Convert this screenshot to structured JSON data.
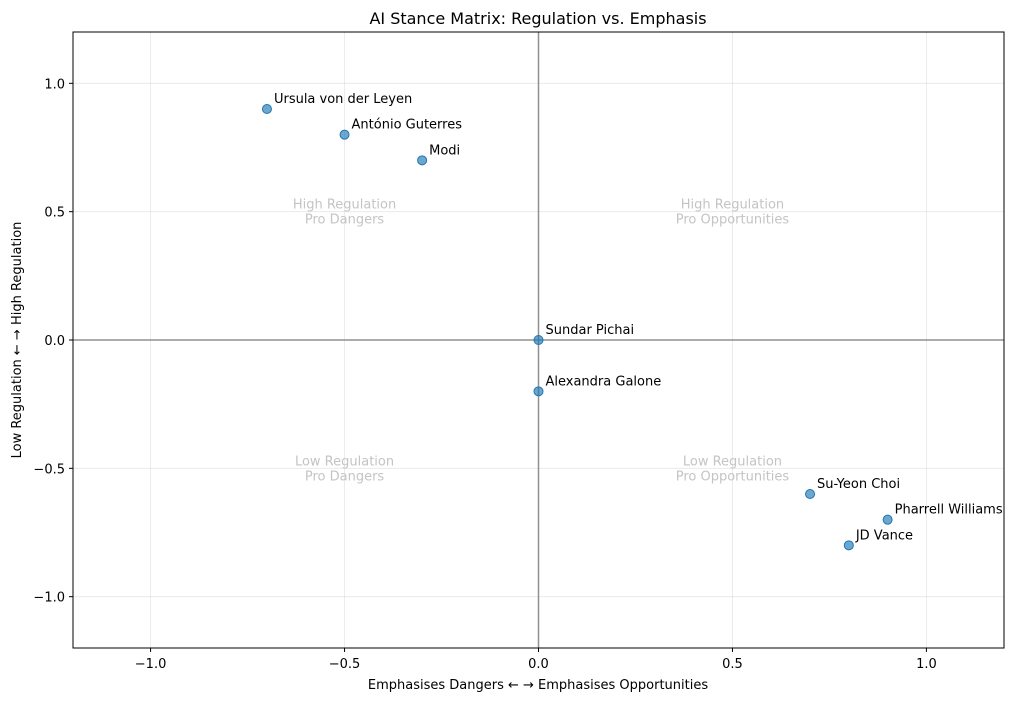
{
  "chart_data": {
    "type": "scatter",
    "title": "AI Stance Matrix: Regulation vs. Emphasis",
    "xlabel": "Emphasises Dangers ← → Emphasises Opportunities",
    "ylabel": "Low Regulation ← → High Regulation",
    "xlim": [
      -1.2,
      1.2
    ],
    "ylim": [
      -1.2,
      1.2
    ],
    "grid": true,
    "xticks": [
      -1.0,
      -0.5,
      0.0,
      0.5,
      1.0
    ],
    "yticks": [
      -1.0,
      -0.5,
      0.0,
      0.5,
      1.0
    ],
    "xtick_labels": [
      "−1.0",
      "−0.5",
      "0.0",
      "0.5",
      "1.0"
    ],
    "ytick_labels": [
      "−1.0",
      "−0.5",
      "0.0",
      "0.5",
      "1.0"
    ],
    "marker_color": "#1f77b4",
    "points": [
      {
        "label": "Ursula von der Leyen",
        "x": -0.7,
        "y": 0.9
      },
      {
        "label": "António Guterres",
        "x": -0.5,
        "y": 0.8
      },
      {
        "label": "Modi",
        "x": -0.3,
        "y": 0.7
      },
      {
        "label": "Sundar Pichai",
        "x": 0.0,
        "y": 0.0
      },
      {
        "label": "Alexandra Galone",
        "x": 0.0,
        "y": -0.2
      },
      {
        "label": "Su-Yeon Choi",
        "x": 0.7,
        "y": -0.6
      },
      {
        "label": "Pharrell Williams",
        "x": 0.9,
        "y": -0.7
      },
      {
        "label": "JD Vance",
        "x": 0.8,
        "y": -0.8
      }
    ],
    "quadrant_labels": [
      {
        "lines": [
          "High Regulation",
          "Pro Dangers"
        ],
        "x": -0.5,
        "y": 0.5
      },
      {
        "lines": [
          "High Regulation",
          "Pro Opportunities"
        ],
        "x": 0.5,
        "y": 0.5
      },
      {
        "lines": [
          "Low Regulation",
          "Pro Dangers"
        ],
        "x": -0.5,
        "y": -0.5
      },
      {
        "lines": [
          "Low Regulation",
          "Pro Opportunities"
        ],
        "x": 0.5,
        "y": -0.5
      }
    ]
  }
}
